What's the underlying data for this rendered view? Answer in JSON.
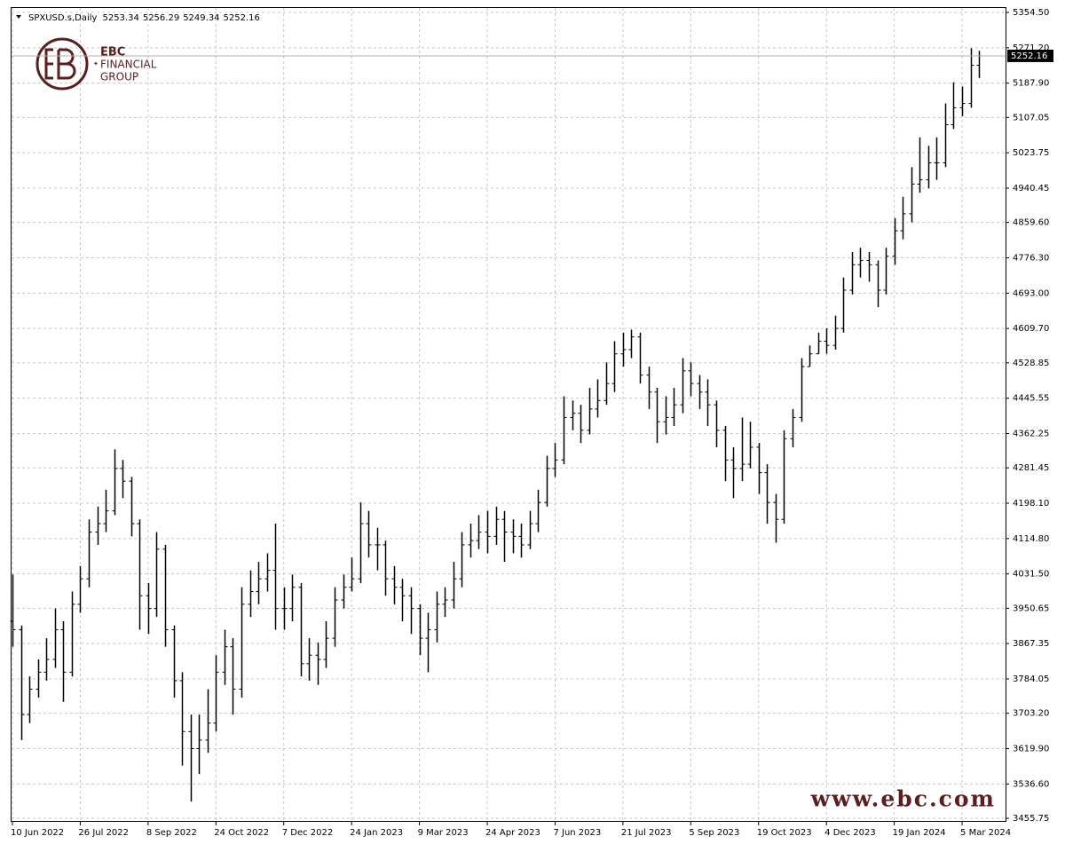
{
  "header": {
    "symbol": "SPXUSD.s,Daily",
    "ohlc": [
      5253.34,
      5256.29,
      5249.34,
      5252.16
    ]
  },
  "logo": {
    "name": "EBC",
    "line1": "FINANCIAL",
    "line2": "GROUP"
  },
  "watermark": "www.ebc.com",
  "chart_data": {
    "type": "ohlc",
    "color": "#000000",
    "grid": true,
    "current_price": 5252.16,
    "ylim": [
      3455.75,
      5354.5
    ],
    "yticks": [
      3455.75,
      {
        "value": 3536.6,
        "label": "3536.60"
      },
      {
        "value": 3619.9,
        "label": "3619.90"
      },
      {
        "value": 3703.2,
        "label": "3703.20"
      },
      3784.05,
      3867.35,
      3950.65,
      {
        "value": 4031.5,
        "label": "4031.50"
      },
      {
        "value": 4114.8,
        "label": "4114.80"
      },
      {
        "value": 4198.1,
        "label": "4198.10"
      },
      4281.45,
      4362.25,
      4445.55,
      4528.85,
      {
        "value": 4609.7,
        "label": "4609.70"
      },
      {
        "value": 4693,
        "label": "4693.00"
      },
      {
        "value": 4776.3,
        "label": "4776.30"
      },
      {
        "value": 4859.6,
        "label": "4859.60"
      },
      4940.45,
      5023.75,
      5107.05,
      {
        "value": 5187.9,
        "label": "5187.90"
      },
      {
        "value": 5271.2,
        "label": "5271.20"
      },
      {
        "value": 5354.5,
        "label": "5354.50"
      }
    ],
    "categories": [
      "10 Jun 2022",
      null,
      null,
      null,
      null,
      null,
      null,
      null,
      "26 Jul 2022",
      null,
      null,
      null,
      null,
      null,
      null,
      null,
      "8 Sep 2022",
      null,
      null,
      null,
      null,
      null,
      null,
      null,
      "24 Oct 2022",
      null,
      null,
      null,
      null,
      null,
      null,
      null,
      "7 Dec 2022",
      null,
      null,
      null,
      null,
      null,
      null,
      null,
      "24 Jan 2023",
      null,
      null,
      null,
      null,
      null,
      null,
      null,
      "9 Mar 2023",
      null,
      null,
      null,
      null,
      null,
      null,
      null,
      "24 Apr 2023",
      null,
      null,
      null,
      null,
      null,
      null,
      null,
      "7 Jun 2023",
      null,
      null,
      null,
      null,
      null,
      null,
      null,
      "21 Jul 2023",
      null,
      null,
      null,
      null,
      null,
      null,
      null,
      "5 Sep 2023",
      null,
      null,
      null,
      null,
      null,
      null,
      null,
      "19 Oct 2023",
      null,
      null,
      null,
      null,
      null,
      null,
      null,
      "4 Dec 2023",
      null,
      null,
      null,
      null,
      null,
      null,
      null,
      "19 Jan 2024",
      null,
      null,
      null,
      null,
      null,
      null,
      null,
      "5 Mar 2024",
      null,
      null
    ],
    "open": [
      3920,
      3900,
      3700,
      3760,
      3800,
      3830,
      3900,
      3800,
      3960,
      4020,
      4130,
      4150,
      4180,
      4280,
      4250,
      4150,
      3980,
      3950,
      4090,
      3900,
      3780,
      3660,
      3620,
      3640,
      3680,
      3800,
      3860,
      3760,
      3960,
      3990,
      4020,
      4040,
      3950,
      3950,
      4000,
      3820,
      3840,
      3830,
      3880,
      3970,
      4000,
      4020,
      4150,
      4100,
      4100,
      4020,
      4000,
      3980,
      3950,
      3880,
      3900,
      3960,
      3970,
      4020,
      4100,
      4110,
      4130,
      4120,
      4160,
      4130,
      4120,
      4100,
      4150,
      4200,
      4280,
      4300,
      4400,
      4410,
      4370,
      4420,
      4440,
      4480,
      4550,
      4560,
      4590,
      4500,
      4460,
      4390,
      4400,
      4430,
      4510,
      4480,
      4460,
      4430,
      4370,
      4300,
      4280,
      4290,
      4330,
      4270,
      4200,
      4160,
      4350,
      4400,
      4520,
      4550,
      4580,
      4570,
      4610,
      4700,
      4760,
      4770,
      4760,
      4700,
      4780,
      4840,
      4880,
      4950,
      4960,
      5000,
      5000,
      5090,
      5130,
      5140,
      5230
    ],
    "high": [
      4030,
      3910,
      3790,
      3830,
      3880,
      3950,
      3920,
      3990,
      4050,
      4160,
      4190,
      4230,
      4325,
      4300,
      4260,
      4160,
      4010,
      4130,
      4100,
      3910,
      3800,
      3700,
      3700,
      3760,
      3840,
      3900,
      3880,
      4000,
      4040,
      4060,
      4080,
      4150,
      4000,
      4030,
      4010,
      3880,
      3870,
      3920,
      4000,
      4030,
      4070,
      4200,
      4180,
      4140,
      4110,
      4050,
      4020,
      4000,
      3960,
      3940,
      3990,
      4000,
      4060,
      4130,
      4150,
      4170,
      4180,
      4190,
      4180,
      4160,
      4150,
      4180,
      4230,
      4310,
      4340,
      4450,
      4440,
      4430,
      4470,
      4490,
      4530,
      4580,
      4600,
      4607,
      4600,
      4520,
      4470,
      4450,
      4470,
      4540,
      4530,
      4500,
      4490,
      4440,
      4380,
      4330,
      4400,
      4390,
      4340,
      4290,
      4220,
      4370,
      4420,
      4540,
      4570,
      4600,
      4610,
      4640,
      4730,
      4790,
      4800,
      4790,
      4770,
      4800,
      4870,
      4920,
      4990,
      5060,
      5040,
      5060,
      5140,
      5190,
      5180,
      5270,
      5264
    ],
    "low": [
      3860,
      3640,
      3680,
      3740,
      3780,
      3810,
      3730,
      3790,
      3940,
      4000,
      4100,
      4130,
      4170,
      4210,
      4120,
      3900,
      3890,
      3930,
      3860,
      3740,
      3580,
      3495,
      3560,
      3610,
      3660,
      3770,
      3700,
      3740,
      3930,
      3960,
      3990,
      3900,
      3900,
      3920,
      3790,
      3780,
      3770,
      3810,
      3860,
      3950,
      3990,
      4010,
      4070,
      4040,
      3980,
      3960,
      3920,
      3890,
      3840,
      3800,
      3870,
      3930,
      3950,
      4000,
      4070,
      4090,
      4080,
      4100,
      4060,
      4080,
      4070,
      4090,
      4130,
      4190,
      4260,
      4290,
      4370,
      4340,
      4360,
      4400,
      4430,
      4460,
      4520,
      4540,
      4480,
      4420,
      4340,
      4360,
      4380,
      4410,
      4450,
      4420,
      4380,
      4330,
      4250,
      4210,
      4250,
      4280,
      4220,
      4150,
      4105,
      4150,
      4330,
      4390,
      4520,
      4550,
      4550,
      4560,
      4600,
      4690,
      4730,
      4720,
      4660,
      4690,
      4760,
      4820,
      4860,
      4930,
      4940,
      4960,
      4990,
      5080,
      5110,
      5130,
      5200
    ],
    "close": [
      3900,
      3700,
      3760,
      3800,
      3830,
      3900,
      3800,
      3960,
      4020,
      4130,
      4150,
      4180,
      4280,
      4250,
      4150,
      3980,
      3950,
      4090,
      3900,
      3780,
      3660,
      3620,
      3640,
      3680,
      3800,
      3860,
      3760,
      3960,
      3990,
      4020,
      4040,
      3950,
      3950,
      4000,
      3820,
      3840,
      3830,
      3880,
      3970,
      4000,
      4020,
      4150,
      4100,
      4100,
      4020,
      4000,
      3980,
      3950,
      3880,
      3900,
      3960,
      3970,
      4020,
      4100,
      4110,
      4130,
      4120,
      4160,
      4130,
      4120,
      4100,
      4150,
      4200,
      4280,
      4300,
      4400,
      4410,
      4370,
      4420,
      4440,
      4480,
      4550,
      4560,
      4590,
      4500,
      4460,
      4390,
      4400,
      4430,
      4510,
      4480,
      4460,
      4430,
      4370,
      4300,
      4280,
      4290,
      4330,
      4270,
      4200,
      4160,
      4350,
      4400,
      4520,
      4550,
      4580,
      4570,
      4610,
      4700,
      4760,
      4770,
      4760,
      4700,
      4780,
      4840,
      4880,
      4950,
      4960,
      5000,
      5000,
      5090,
      5130,
      5140,
      5230,
      5252.16
    ]
  }
}
